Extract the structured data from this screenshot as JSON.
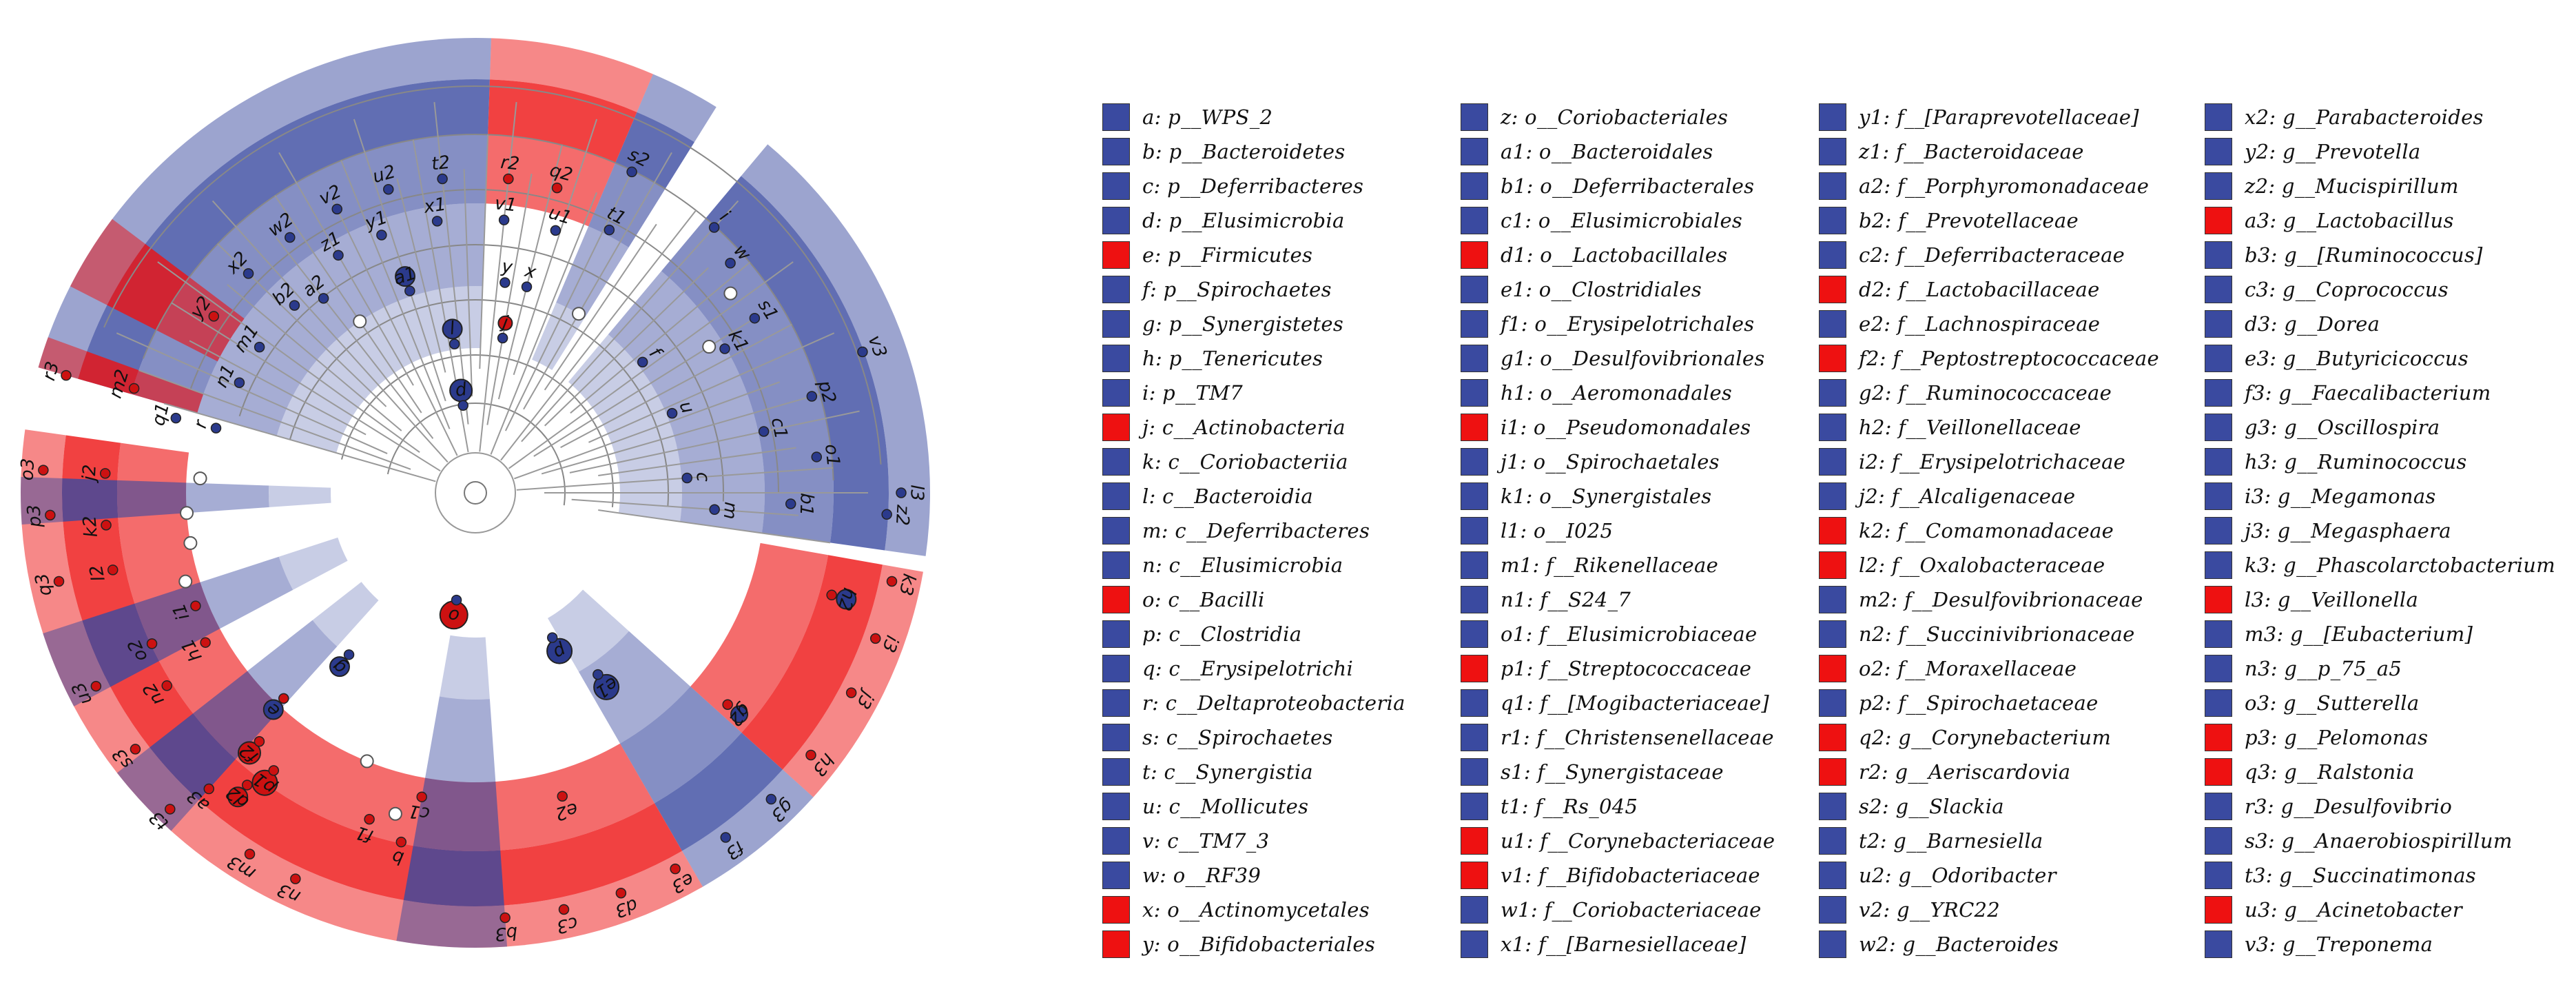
{
  "colors": {
    "depleted": "#3a4aa0",
    "enriched": "#ee1111",
    "node_blue": "#2b3a8c",
    "node_red": "#cc1111",
    "node_white": "#ffffff"
  },
  "sectors": [
    {
      "color": "blue",
      "a0": 196,
      "a1": 272
    },
    {
      "color": "red",
      "a0": 272,
      "a1": 293
    },
    {
      "color": "blue",
      "a0": 293,
      "a1": 302
    },
    {
      "color": "blue",
      "a0": 310,
      "a1": 368
    },
    {
      "color": "red",
      "a0": 10,
      "a1": 42
    },
    {
      "color": "blue",
      "a0": 42,
      "a1": 60
    },
    {
      "color": "red",
      "a0": 60,
      "a1": 188
    },
    {
      "color": "blue",
      "a0": 176,
      "a1": 182
    },
    {
      "color": "blue",
      "a0": 152,
      "a1": 162
    },
    {
      "color": "blue",
      "a0": 132,
      "a1": 142
    },
    {
      "color": "blue",
      "a0": 86,
      "a1": 100
    },
    {
      "color": "red",
      "a0": 196,
      "a1": 200
    },
    {
      "color": "red",
      "a0": 207,
      "a1": 217
    }
  ],
  "clade_labels": [
    {
      "t": "y2",
      "a": 214,
      "r": 480
    },
    {
      "t": "x2",
      "a": 224,
      "r": 480
    },
    {
      "t": "w2",
      "a": 234,
      "r": 480
    },
    {
      "t": "v2",
      "a": 244,
      "r": 480
    },
    {
      "t": "u2",
      "a": 254,
      "r": 480
    },
    {
      "t": "t2",
      "a": 264,
      "r": 480
    },
    {
      "t": "r2",
      "a": 276,
      "r": 480
    },
    {
      "t": "q2",
      "a": 285,
      "r": 480
    },
    {
      "t": "s2",
      "a": 296,
      "r": 540
    },
    {
      "t": "z1",
      "a": 240,
      "r": 420
    },
    {
      "t": "y1",
      "a": 250,
      "r": 420
    },
    {
      "t": "x1",
      "a": 262,
      "r": 420
    },
    {
      "t": "v1",
      "a": 276,
      "r": 420
    },
    {
      "t": "u1",
      "a": 287,
      "r": 420
    },
    {
      "t": "t1",
      "a": 297,
      "r": 450
    },
    {
      "t": "b2",
      "a": 226,
      "r": 400
    },
    {
      "t": "a2",
      "a": 232,
      "r": 380
    },
    {
      "t": "m1",
      "a": 214,
      "r": 400
    },
    {
      "t": "n1",
      "a": 205,
      "r": 400
    },
    {
      "t": "a1",
      "a": 252,
      "r": 330
    },
    {
      "t": "l",
      "a": 262,
      "r": 240
    },
    {
      "t": "d",
      "a": 262,
      "r": 150
    },
    {
      "t": "y",
      "a": 278,
      "r": 330
    },
    {
      "t": "x",
      "a": 284,
      "r": 330
    },
    {
      "t": "j",
      "a": 280,
      "r": 250
    },
    {
      "t": "r3",
      "a": 196,
      "r": 640
    },
    {
      "t": "m2",
      "a": 197,
      "r": 540
    },
    {
      "t": "q1",
      "a": 194,
      "r": 470
    },
    {
      "t": "r",
      "a": 194,
      "r": 410
    },
    {
      "t": "o3",
      "a": 183,
      "r": 650
    },
    {
      "t": "j2",
      "a": 183,
      "r": 560
    },
    {
      "t": "p3",
      "a": 177,
      "r": 640
    },
    {
      "t": "k2",
      "a": 175,
      "r": 560
    },
    {
      "t": "q3",
      "a": 168,
      "r": 640
    },
    {
      "t": "l2",
      "a": 168,
      "r": 560
    },
    {
      "t": "u3",
      "a": 153,
      "r": 640
    },
    {
      "t": "o2",
      "a": 155,
      "r": 540
    },
    {
      "t": "i1",
      "a": 158,
      "r": 460
    },
    {
      "t": "s3",
      "a": 143,
      "r": 640
    },
    {
      "t": "n2",
      "a": 148,
      "r": 550
    },
    {
      "t": "h1",
      "a": 151,
      "r": 470
    },
    {
      "t": "t3",
      "a": 134,
      "r": 660
    },
    {
      "t": "a3",
      "a": 132,
      "r": 600
    },
    {
      "t": "d2",
      "a": 128,
      "r": 560
    },
    {
      "t": "p1",
      "a": 126,
      "r": 520
    },
    {
      "t": "f2",
      "a": 131,
      "r": 500
    },
    {
      "t": "e",
      "a": 133,
      "r": 430
    },
    {
      "t": "l3",
      "a": 0,
      "r": 640
    },
    {
      "t": "k3",
      "a": 12,
      "r": 640
    },
    {
      "t": "i3",
      "a": 20,
      "r": 640
    },
    {
      "t": "j3",
      "a": 28,
      "r": 640
    },
    {
      "t": "h3",
      "a": 38,
      "r": 640
    },
    {
      "t": "g3",
      "a": 46,
      "r": 640
    },
    {
      "t": "f3",
      "a": 54,
      "r": 640
    },
    {
      "t": "e3",
      "a": 62,
      "r": 640
    },
    {
      "t": "d3",
      "a": 70,
      "r": 640
    },
    {
      "t": "c3",
      "a": 78,
      "r": 640
    },
    {
      "t": "b3",
      "a": 86,
      "r": 640
    },
    {
      "t": "n3",
      "a": 115,
      "r": 640
    },
    {
      "t": "m3",
      "a": 122,
      "r": 640
    },
    {
      "t": "h2",
      "a": 16,
      "r": 560
    },
    {
      "t": "g2",
      "a": 40,
      "r": 500
    },
    {
      "t": "e2",
      "a": 74,
      "r": 480
    },
    {
      "t": "c1",
      "a": 100,
      "r": 470
    },
    {
      "t": "b",
      "a": 102,
      "r": 540
    },
    {
      "t": "f1",
      "a": 108,
      "r": 520
    },
    {
      "t": "g",
      "a": 128,
      "r": 320
    },
    {
      "t": "e1",
      "a": 56,
      "r": 340
    },
    {
      "t": "p",
      "a": 62,
      "r": 260
    },
    {
      "t": "o",
      "a": 100,
      "r": 180
    },
    {
      "t": "i",
      "a": 312,
      "r": 540
    },
    {
      "t": "w",
      "a": 318,
      "r": 520
    },
    {
      "t": "s1",
      "a": 328,
      "r": 500
    },
    {
      "t": "k1",
      "a": 330,
      "r": 440
    },
    {
      "t": "v3",
      "a": 340,
      "r": 620
    },
    {
      "t": "p2",
      "a": 344,
      "r": 530
    },
    {
      "t": "c1",
      "a": 348,
      "r": 450
    },
    {
      "t": "o1",
      "a": 354,
      "r": 520
    },
    {
      "t": "b1",
      "a": 362,
      "r": 480
    },
    {
      "t": "z2",
      "a": 363,
      "r": 620
    },
    {
      "t": "m",
      "a": 364,
      "r": 370
    },
    {
      "t": "u",
      "a": 338,
      "r": 330
    },
    {
      "t": "f",
      "a": 322,
      "r": 330
    },
    {
      "t": "c",
      "a": 356,
      "r": 330
    }
  ],
  "legend": [
    [
      {
        "label": "a: p__WPS_2",
        "c": "blue"
      },
      {
        "label": "b: p__Bacteroidetes",
        "c": "blue"
      },
      {
        "label": "c: p__Deferribacteres",
        "c": "blue"
      },
      {
        "label": "d: p__Elusimicrobia",
        "c": "blue"
      },
      {
        "label": "e: p__Firmicutes",
        "c": "red"
      },
      {
        "label": "f: p__Spirochaetes",
        "c": "blue"
      },
      {
        "label": "g: p__Synergistetes",
        "c": "blue"
      },
      {
        "label": "h: p__Tenericutes",
        "c": "blue"
      },
      {
        "label": "i: p__TM7",
        "c": "blue"
      },
      {
        "label": "j: c__Actinobacteria",
        "c": "red"
      },
      {
        "label": "k: c__Coriobacteriia",
        "c": "blue"
      },
      {
        "label": "l: c__Bacteroidia",
        "c": "blue"
      },
      {
        "label": "m: c__Deferribacteres",
        "c": "blue"
      },
      {
        "label": "n: c__Elusimicrobia",
        "c": "blue"
      },
      {
        "label": "o: c__Bacilli",
        "c": "red"
      },
      {
        "label": "p: c__Clostridia",
        "c": "blue"
      },
      {
        "label": "q: c__Erysipelotrichi",
        "c": "blue"
      },
      {
        "label": "r: c__Deltaproteobacteria",
        "c": "blue"
      },
      {
        "label": "s: c__Spirochaetes",
        "c": "blue"
      },
      {
        "label": "t: c__Synergistia",
        "c": "blue"
      },
      {
        "label": "u: c__Mollicutes",
        "c": "blue"
      },
      {
        "label": "v: c__TM7_3",
        "c": "blue"
      },
      {
        "label": "w: o__RF39",
        "c": "blue"
      },
      {
        "label": "x: o__Actinomycetales",
        "c": "red"
      },
      {
        "label": "y: o__Bifidobacteriales",
        "c": "red"
      }
    ],
    [
      {
        "label": "z: o__Coriobacteriales",
        "c": "blue"
      },
      {
        "label": "a1: o__Bacteroidales",
        "c": "blue"
      },
      {
        "label": "b1: o__Deferribacterales",
        "c": "blue"
      },
      {
        "label": "c1: o__Elusimicrobiales",
        "c": "blue"
      },
      {
        "label": "d1: o__Lactobacillales",
        "c": "red"
      },
      {
        "label": "e1: o__Clostridiales",
        "c": "blue"
      },
      {
        "label": "f1: o__Erysipelotrichales",
        "c": "blue"
      },
      {
        "label": "g1: o__Desulfovibrionales",
        "c": "blue"
      },
      {
        "label": "h1: o__Aeromonadales",
        "c": "blue"
      },
      {
        "label": "i1: o__Pseudomonadales",
        "c": "red"
      },
      {
        "label": "j1: o__Spirochaetales",
        "c": "blue"
      },
      {
        "label": "k1: o__Synergistales",
        "c": "blue"
      },
      {
        "label": "l1: o__I025",
        "c": "blue"
      },
      {
        "label": "m1: f__Rikenellaceae",
        "c": "blue"
      },
      {
        "label": "n1: f__S24_7",
        "c": "blue"
      },
      {
        "label": "o1: f__Elusimicrobiaceae",
        "c": "blue"
      },
      {
        "label": "p1: f__Streptococcaceae",
        "c": "red"
      },
      {
        "label": "q1: f__[Mogibacteriaceae]",
        "c": "blue"
      },
      {
        "label": "r1: f__Christensenellaceae",
        "c": "blue"
      },
      {
        "label": "s1: f__Synergistaceae",
        "c": "blue"
      },
      {
        "label": "t1: f__Rs_045",
        "c": "blue"
      },
      {
        "label": "u1: f__Corynebacteriaceae",
        "c": "red"
      },
      {
        "label": "v1: f__Bifidobacteriaceae",
        "c": "red"
      },
      {
        "label": "w1: f__Coriobacteriaceae",
        "c": "blue"
      },
      {
        "label": "x1: f__[Barnesiellaceae]",
        "c": "blue"
      }
    ],
    [
      {
        "label": "y1: f__[Paraprevotellaceae]",
        "c": "blue"
      },
      {
        "label": "z1: f__Bacteroidaceae",
        "c": "blue"
      },
      {
        "label": "a2: f__Porphyromonadaceae",
        "c": "blue"
      },
      {
        "label": "b2: f__Prevotellaceae",
        "c": "blue"
      },
      {
        "label": "c2: f__Deferribacteraceae",
        "c": "blue"
      },
      {
        "label": "d2: f__Lactobacillaceae",
        "c": "red"
      },
      {
        "label": "e2: f__Lachnospiraceae",
        "c": "blue"
      },
      {
        "label": "f2: f__Peptostreptococcaceae",
        "c": "red"
      },
      {
        "label": "g2: f__Ruminococcaceae",
        "c": "blue"
      },
      {
        "label": "h2: f__Veillonellaceae",
        "c": "blue"
      },
      {
        "label": "i2: f__Erysipelotrichaceae",
        "c": "blue"
      },
      {
        "label": "j2: f__Alcaligenaceae",
        "c": "blue"
      },
      {
        "label": "k2: f__Comamonadaceae",
        "c": "red"
      },
      {
        "label": "l2: f__Oxalobacteraceae",
        "c": "red"
      },
      {
        "label": "m2: f__Desulfovibrionaceae",
        "c": "blue"
      },
      {
        "label": "n2: f__Succinivibrionaceae",
        "c": "blue"
      },
      {
        "label": "o2: f__Moraxellaceae",
        "c": "red"
      },
      {
        "label": "p2: f__Spirochaetaceae",
        "c": "blue"
      },
      {
        "label": "q2: g__Corynebacterium",
        "c": "red"
      },
      {
        "label": "r2: g__Aeriscardovia",
        "c": "red"
      },
      {
        "label": "s2: g__Slackia",
        "c": "blue"
      },
      {
        "label": "t2: g__Barnesiella",
        "c": "blue"
      },
      {
        "label": "u2: g__Odoribacter",
        "c": "blue"
      },
      {
        "label": "v2: g__YRC22",
        "c": "blue"
      },
      {
        "label": "w2: g__Bacteroides",
        "c": "blue"
      }
    ],
    [
      {
        "label": "x2: g__Parabacteroides",
        "c": "blue"
      },
      {
        "label": "y2: g__Prevotella",
        "c": "blue"
      },
      {
        "label": "z2: g__Mucispirillum",
        "c": "blue"
      },
      {
        "label": "a3: g__Lactobacillus",
        "c": "red"
      },
      {
        "label": "b3: g__[Ruminococcus]",
        "c": "blue"
      },
      {
        "label": "c3: g__Coprococcus",
        "c": "blue"
      },
      {
        "label": "d3: g__Dorea",
        "c": "blue"
      },
      {
        "label": "e3: g__Butyricicoccus",
        "c": "blue"
      },
      {
        "label": "f3: g__Faecalibacterium",
        "c": "blue"
      },
      {
        "label": "g3: g__Oscillospira",
        "c": "blue"
      },
      {
        "label": "h3: g__Ruminococcus",
        "c": "blue"
      },
      {
        "label": "i3: g__Megamonas",
        "c": "blue"
      },
      {
        "label": "j3: g__Megasphaera",
        "c": "blue"
      },
      {
        "label": "k3: g__Phascolarctobacterium",
        "c": "blue"
      },
      {
        "label": "l3: g__Veillonella",
        "c": "red"
      },
      {
        "label": "m3: g__[Eubacterium]",
        "c": "blue"
      },
      {
        "label": "n3: g__p_75_a5",
        "c": "blue"
      },
      {
        "label": "o3: g__Sutterella",
        "c": "blue"
      },
      {
        "label": "p3: g__Pelomonas",
        "c": "red"
      },
      {
        "label": "q3: g__Ralstonia",
        "c": "red"
      },
      {
        "label": "r3: g__Desulfovibrio",
        "c": "blue"
      },
      {
        "label": "s3: g__Anaerobiospirillum",
        "c": "blue"
      },
      {
        "label": "t3: g__Succinatimonas",
        "c": "blue"
      },
      {
        "label": "u3: g__Acinetobacter",
        "c": "red"
      },
      {
        "label": "v3: g__Treponema",
        "c": "blue"
      }
    ]
  ]
}
